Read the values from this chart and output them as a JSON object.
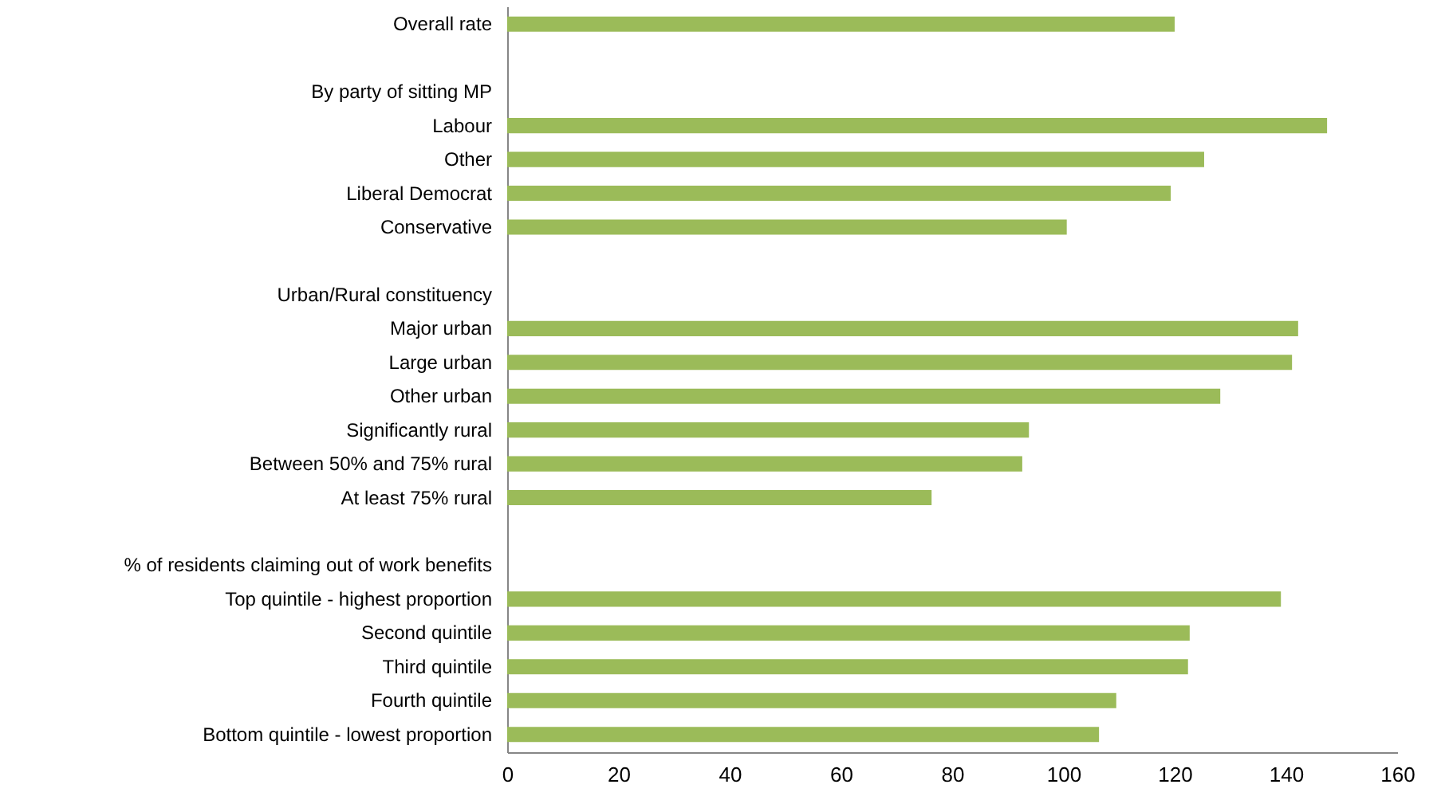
{
  "chart_data": {
    "type": "bar",
    "orientation": "horizontal",
    "categories": [
      "Overall rate",
      null,
      "By party of sitting MP",
      "Labour",
      "Other",
      "Liberal Democrat",
      "Conservative",
      null,
      "Urban/Rural constituency",
      "Major urban",
      "Large urban",
      "Other urban",
      "Significantly rural",
      "Between 50% and 75% rural",
      "At least 75% rural",
      null,
      "% of residents claiming out of work benefits",
      "Top quintile - highest proportion",
      "Second quintile",
      "Third quintile",
      "Fourth quintile",
      "Bottom quintile - lowest proportion"
    ],
    "values": [
      120,
      null,
      null,
      147.4,
      125.3,
      119.3,
      100.6,
      null,
      null,
      142.2,
      141.1,
      128.2,
      93.8,
      92.6,
      76.3,
      null,
      null,
      139.1,
      122.7,
      122.4,
      109.5,
      106.4
    ],
    "color": "#9bbb59",
    "xlim": [
      0,
      160
    ],
    "xticks": [
      0,
      20,
      40,
      60,
      80,
      100,
      120,
      140,
      160
    ],
    "grid": false
  }
}
